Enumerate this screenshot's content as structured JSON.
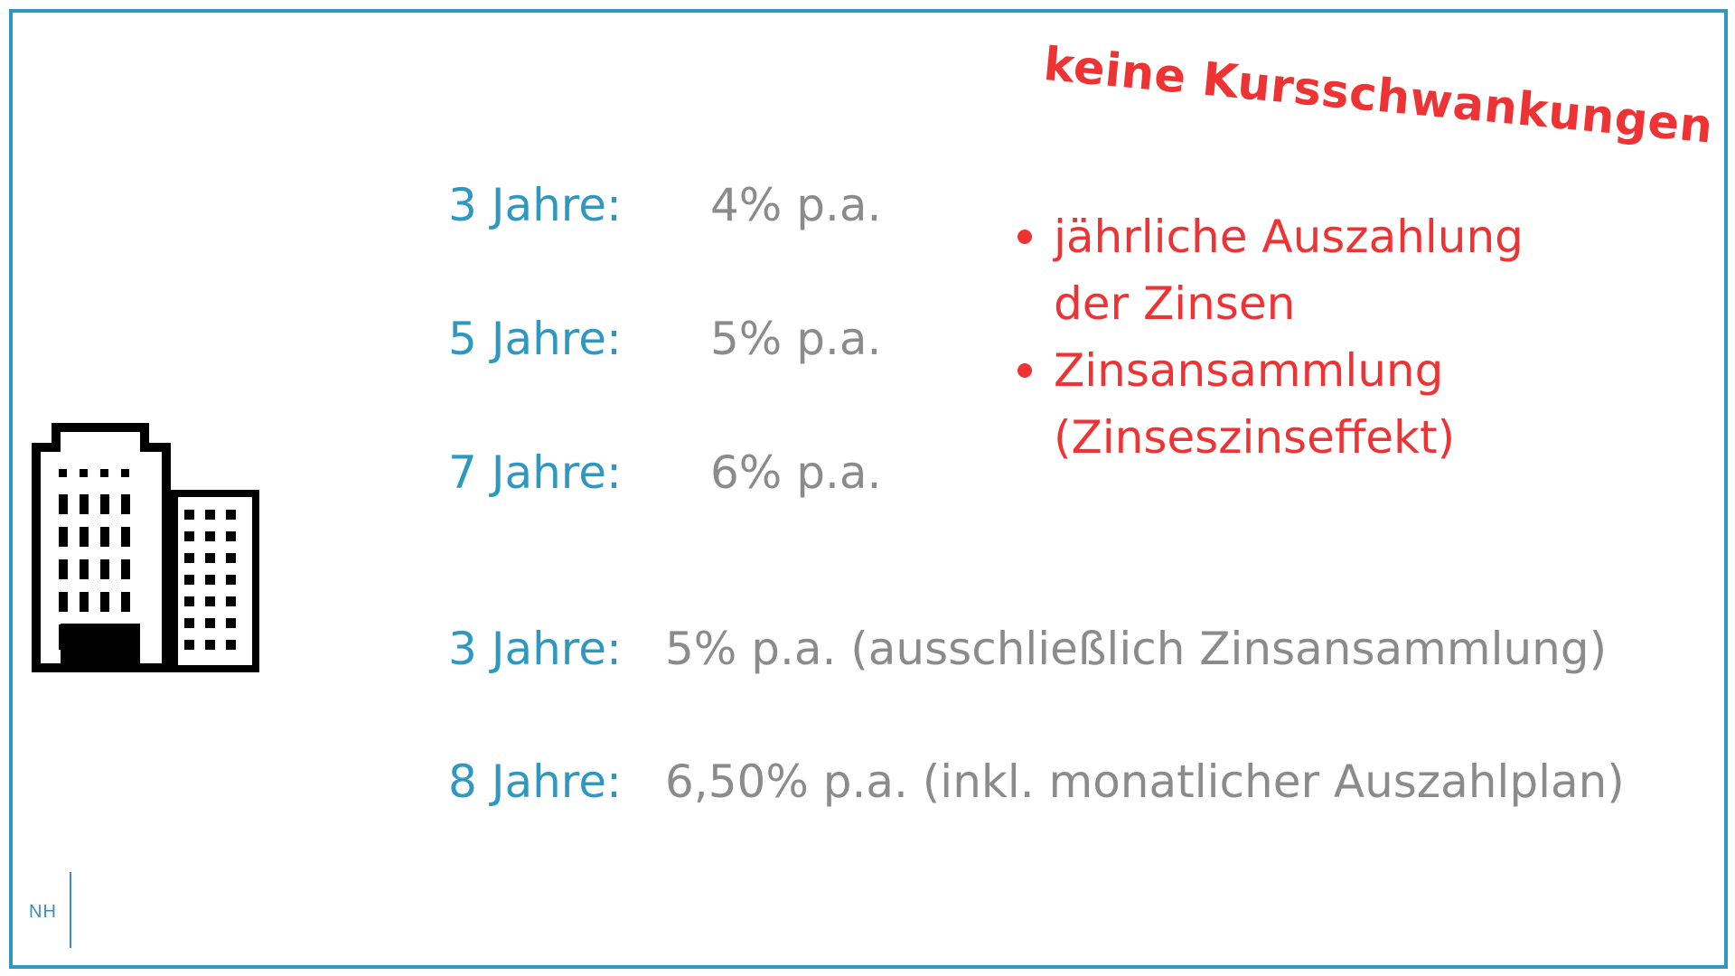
{
  "headline": "keine Kursschwankungen",
  "rates": [
    {
      "term": "3 Jahre:",
      "rate": "4% p.a."
    },
    {
      "term": "5 Jahre:",
      "rate": "5% p.a."
    },
    {
      "term": "7 Jahre:",
      "rate": "6% p.a."
    },
    {
      "term": "3 Jahre:",
      "rate": "5% p.a. (ausschließlich Zinsansammlung)"
    },
    {
      "term": "8 Jahre:",
      "rate": "6,50% p.a. (inkl. monatlicher Auszahlplan)"
    }
  ],
  "benefits": [
    {
      "line1": "jährliche Auszahlung",
      "line2": "der Zinsen"
    },
    {
      "line1": "Zinsansammlung",
      "line2": "(Zinseszinseffekt)"
    }
  ],
  "icons": {
    "building": "office-building-icon"
  },
  "logo": {
    "text": "NH"
  },
  "colors": {
    "accent_blue": "#2f98c1",
    "accent_red": "#ee3334",
    "text_gray": "#8b8b8b"
  }
}
